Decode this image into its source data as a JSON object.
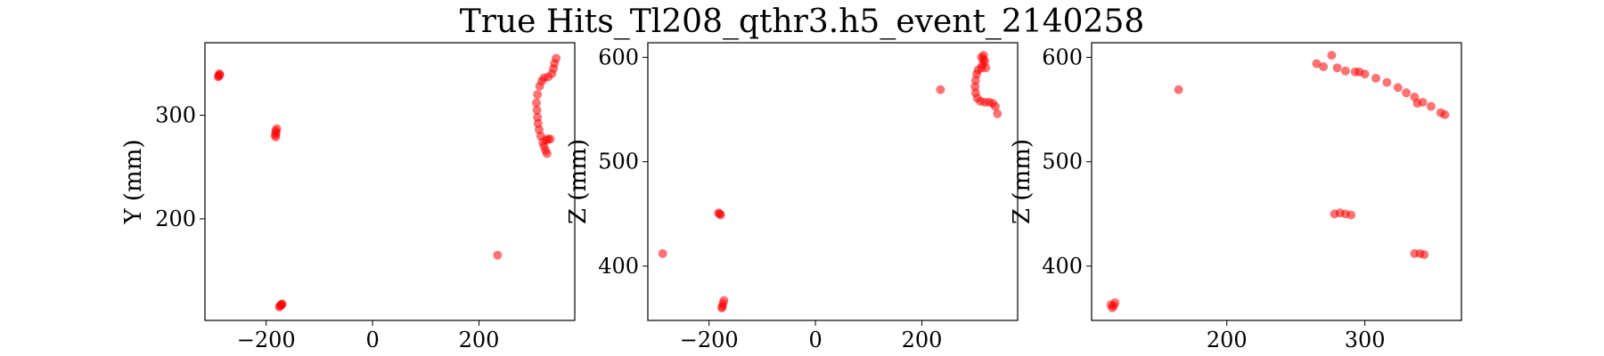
{
  "figure": {
    "title": "True Hits_Tl208_qthr3.h5_event_2140258",
    "point_color": "#ff0000"
  },
  "chart_data": [
    {
      "type": "scatter",
      "xlabel": "",
      "ylabel": "Y (mm)",
      "xlim": [
        -315,
        380
      ],
      "ylim": [
        102,
        370
      ],
      "xticks": [
        -200,
        0,
        200
      ],
      "yticks": [
        200,
        300
      ],
      "xtick_labels": [
        "−200",
        "0",
        "200"
      ],
      "ytick_labels": [
        "200",
        "300"
      ],
      "series": [
        {
          "points": [
            [
              -290,
              337
            ],
            [
              -288,
              340
            ],
            [
              -289,
              338
            ],
            [
              -287,
              339
            ],
            [
              -180,
              287
            ],
            [
              -182,
              285
            ],
            [
              -183,
              281
            ],
            [
              -181,
              283
            ],
            [
              -182,
              279
            ],
            [
              -175,
              115
            ],
            [
              -172,
              117
            ],
            [
              -170,
              118
            ],
            [
              -174,
              116
            ],
            [
              -171,
              117
            ],
            [
              235,
              165
            ],
            [
              345,
              355
            ],
            [
              342,
              350
            ],
            [
              340,
              345
            ],
            [
              337,
              340
            ],
            [
              330,
              337
            ],
            [
              322,
              336
            ],
            [
              318,
              333
            ],
            [
              314,
              328
            ],
            [
              310,
              320
            ],
            [
              308,
              312
            ],
            [
              309,
              305
            ],
            [
              310,
              298
            ],
            [
              311,
              292
            ],
            [
              313,
              286
            ],
            [
              316,
              280
            ],
            [
              320,
              274
            ],
            [
              322,
              270
            ],
            [
              325,
              266
            ],
            [
              328,
              263
            ],
            [
              326,
              276
            ],
            [
              330,
              277
            ],
            [
              334,
              277
            ]
          ]
        }
      ]
    },
    {
      "type": "scatter",
      "xlabel": "",
      "ylabel": "Z (mm)",
      "xlim": [
        -315,
        380
      ],
      "ylim": [
        348,
        614
      ],
      "xticks": [
        -200,
        0,
        200
      ],
      "yticks": [
        400,
        500,
        600
      ],
      "xtick_labels": [
        "−200",
        "0",
        "200"
      ],
      "ytick_labels": [
        "400",
        "500",
        "600"
      ],
      "series": [
        {
          "points": [
            [
              -287,
              412
            ],
            [
              -182,
              451
            ],
            [
              -178,
              449
            ],
            [
              -180,
              450
            ],
            [
              -175,
              361
            ],
            [
              -172,
              367
            ],
            [
              -174,
              364
            ],
            [
              -176,
              360
            ],
            [
              235,
              569
            ],
            [
              312,
              600
            ],
            [
              316,
              602
            ],
            [
              318,
              596
            ],
            [
              314,
              593
            ],
            [
              312,
              590
            ],
            [
              306,
              588
            ],
            [
              303,
              584
            ],
            [
              301,
              578
            ],
            [
              300,
              572
            ],
            [
              301,
              566
            ],
            [
              304,
              561
            ],
            [
              310,
              558
            ],
            [
              318,
              557
            ],
            [
              326,
              557
            ],
            [
              333,
              556
            ],
            [
              338,
              553
            ],
            [
              342,
              546
            ],
            [
              316,
              598
            ],
            [
              320,
              590
            ]
          ]
        }
      ]
    },
    {
      "type": "scatter",
      "xlabel": "",
      "ylabel": "Z (mm)",
      "xlim": [
        102,
        370
      ],
      "ylim": [
        348,
        614
      ],
      "xticks": [
        200,
        300
      ],
      "yticks": [
        400,
        500,
        600
      ],
      "xtick_labels": [
        "200",
        "300"
      ],
      "ytick_labels": [
        "400",
        "500",
        "600"
      ],
      "series": [
        {
          "points": [
            [
              117,
              360
            ],
            [
              119,
              365
            ],
            [
              116,
              363
            ],
            [
              118,
              362
            ],
            [
              165,
              569
            ],
            [
              278,
              450
            ],
            [
              282,
              451
            ],
            [
              286,
              450
            ],
            [
              290,
              449
            ],
            [
              336,
              412
            ],
            [
              340,
              412
            ],
            [
              343,
              411
            ],
            [
              265,
              594
            ],
            [
              270,
              591
            ],
            [
              276,
              602
            ],
            [
              280,
              590
            ],
            [
              286,
              587
            ],
            [
              293,
              586
            ],
            [
              300,
              584
            ],
            [
              308,
              580
            ],
            [
              316,
              576
            ],
            [
              324,
              571
            ],
            [
              330,
              566
            ],
            [
              336,
              562
            ],
            [
              342,
              557
            ],
            [
              348,
              553
            ],
            [
              355,
              547
            ],
            [
              358,
              545
            ],
            [
              338,
              556
            ],
            [
              296,
              586
            ]
          ]
        }
      ]
    }
  ]
}
